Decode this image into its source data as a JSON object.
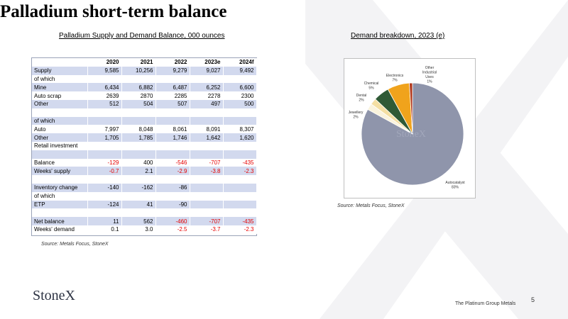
{
  "title": "Palladium short-term balance",
  "table_caption": "Palladium Supply and Demand Balance,  000 ounces",
  "pie_caption": "Demand breakdown, 2023 (e)",
  "source_left": "Source: Metals Focus, StoneX",
  "source_right": "Source: Metals Focus, StoneX",
  "logo": "StoneX",
  "watermark": "StoneX",
  "footer": "The Platinum Group Metals",
  "page_number": "5",
  "colors": {
    "shade": "#d2d9ee",
    "negative": "#e60000",
    "autocatalyst": "#8f95ab",
    "jewellery": "#faf3dc",
    "dental": "#f4dfa3",
    "chemical": "#2f5a36",
    "electronics": "#f0a31c",
    "other_industrial": "#b23a1e"
  },
  "chart_data": [
    {
      "type": "table",
      "columns": [
        "",
        "2020",
        "2021",
        "2022",
        "2023e",
        "2024f"
      ],
      "rows": [
        {
          "label": "Supply",
          "values": [
            "9,585",
            "10,256",
            "9,279",
            "9,027",
            "9,492"
          ],
          "shade": true
        },
        {
          "label": "of which",
          "values": [
            "",
            "",
            "",
            "",
            ""
          ],
          "shade": false
        },
        {
          "label": "Mine",
          "values": [
            "6,434",
            "6,882",
            "6,487",
            "6,252",
            "6,600"
          ],
          "shade": true
        },
        {
          "label": "Auto scrap",
          "values": [
            "2639",
            "2870",
            "2285",
            "2278",
            "2300"
          ],
          "shade": false
        },
        {
          "label": "Other",
          "values": [
            "512",
            "504",
            "507",
            "497",
            "500"
          ],
          "shade": true
        },
        {
          "label": "",
          "values": [
            "",
            "",
            "",
            "",
            ""
          ],
          "shade": false
        },
        {
          "label": "of which",
          "values": [
            "",
            "",
            "",
            "",
            ""
          ],
          "shade": true
        },
        {
          "label": "Auto",
          "values": [
            "7,997",
            "8,048",
            "8,061",
            "8,091",
            "8,307"
          ],
          "shade": false
        },
        {
          "label": "Other",
          "values": [
            "1,705",
            "1,785",
            "1,746",
            "1,642",
            "1,620"
          ],
          "shade": true
        },
        {
          "label": "Retail investment",
          "values": [
            "",
            "",
            "",
            "",
            ""
          ],
          "shade": false
        },
        {
          "label": "",
          "values": [
            "",
            "",
            "",
            "",
            ""
          ],
          "shade": true
        },
        {
          "label": "Balance",
          "values": [
            "-129",
            "400",
            "-546",
            "-707",
            "-435"
          ],
          "shade": false,
          "neg": [
            true,
            false,
            true,
            true,
            true
          ]
        },
        {
          "label": "Weeks' supply",
          "values": [
            "-0.7",
            "2.1",
            "-2.9",
            "-3.8",
            "-2.3"
          ],
          "shade": true,
          "neg": [
            true,
            false,
            true,
            true,
            true
          ]
        },
        {
          "label": "",
          "values": [
            "",
            "",
            "",
            "",
            ""
          ],
          "shade": false
        },
        {
          "label": "Inventory change",
          "values": [
            "-140",
            "-162",
            "-86",
            "",
            ""
          ],
          "shade": true
        },
        {
          "label": "of which",
          "values": [
            "",
            "",
            "",
            "",
            ""
          ],
          "shade": false
        },
        {
          "label": "ETP",
          "values": [
            "-124",
            "41",
            "-90",
            "",
            ""
          ],
          "shade": true
        },
        {
          "label": "",
          "values": [
            "",
            "",
            "",
            "",
            ""
          ],
          "shade": false
        },
        {
          "label": "Net balance",
          "values": [
            "11",
            "562",
            "-460",
            "-707",
            "-435"
          ],
          "shade": true,
          "neg": [
            false,
            false,
            true,
            true,
            true
          ]
        },
        {
          "label": "Weeks' demand",
          "values": [
            "0.1",
            "3.0",
            "-2.5",
            "-3.7",
            "-2.3"
          ],
          "shade": false,
          "neg": [
            false,
            false,
            true,
            true,
            true
          ]
        }
      ]
    },
    {
      "type": "pie",
      "slices": [
        {
          "label": "Autocatalyst",
          "pct_label": "83%",
          "value": 83,
          "color": "#8f95ab"
        },
        {
          "label": "Jewellery",
          "pct_label": "2%",
          "value": 2,
          "color": "#faf3dc"
        },
        {
          "label": "Dental",
          "pct_label": "2%",
          "value": 2,
          "color": "#f4dfa3"
        },
        {
          "label": "Chemical",
          "pct_label": "5%",
          "value": 5,
          "color": "#2f5a36"
        },
        {
          "label": "Electronics",
          "pct_label": "7%",
          "value": 7,
          "color": "#f0a31c"
        },
        {
          "label": "Other Industrial Uses",
          "pct_label": "1%",
          "value": 1,
          "color": "#b23a1e"
        }
      ]
    }
  ]
}
